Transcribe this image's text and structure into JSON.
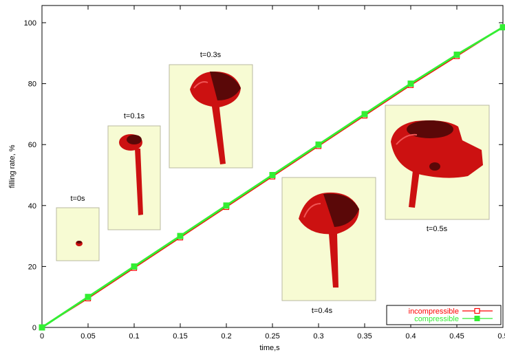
{
  "chart_data": {
    "type": "line",
    "xlabel": "time,s",
    "ylabel": "filling rate, %",
    "xlim": [
      0,
      0.5
    ],
    "ylim": [
      0,
      100
    ],
    "x_ticks": [
      "0",
      "0.05",
      "0.1",
      "0.15",
      "0.2",
      "0.25",
      "0.3",
      "0.35",
      "0.4",
      "0.45",
      "0.5"
    ],
    "y_ticks": [
      "0",
      "20",
      "40",
      "60",
      "80",
      "100"
    ],
    "grid": false,
    "legend_position": "bottom-right",
    "series": [
      {
        "name": "incompressible",
        "color": "#ff0000",
        "marker": "open-square",
        "x": [
          0,
          0.05,
          0.1,
          0.15,
          0.2,
          0.25,
          0.3,
          0.35,
          0.4,
          0.45,
          0.5
        ],
        "values": [
          0,
          9.5,
          19.5,
          29.5,
          39.5,
          49.5,
          59.5,
          69.5,
          79.5,
          89,
          98.5
        ]
      },
      {
        "name": "compressible",
        "color": "#33ee33",
        "marker": "filled-square",
        "x": [
          0,
          0.05,
          0.1,
          0.15,
          0.2,
          0.25,
          0.3,
          0.35,
          0.4,
          0.45,
          0.5
        ],
        "values": [
          0,
          10,
          20,
          30,
          40,
          50,
          60,
          70,
          80,
          89.5,
          98.5
        ]
      }
    ],
    "snapshots": [
      {
        "label": "t=0s"
      },
      {
        "label": "t=0.1s"
      },
      {
        "label": "t=0.3s"
      },
      {
        "label": "t=0.4s"
      },
      {
        "label": "t=0.5s"
      }
    ]
  },
  "colors": {
    "snapshot_bg": "#f7fbd3",
    "snapshot_border": "#b8b8a0",
    "part_red": "#cc1111",
    "part_dark": "#5a0808",
    "part_highlight": "#f05555"
  }
}
